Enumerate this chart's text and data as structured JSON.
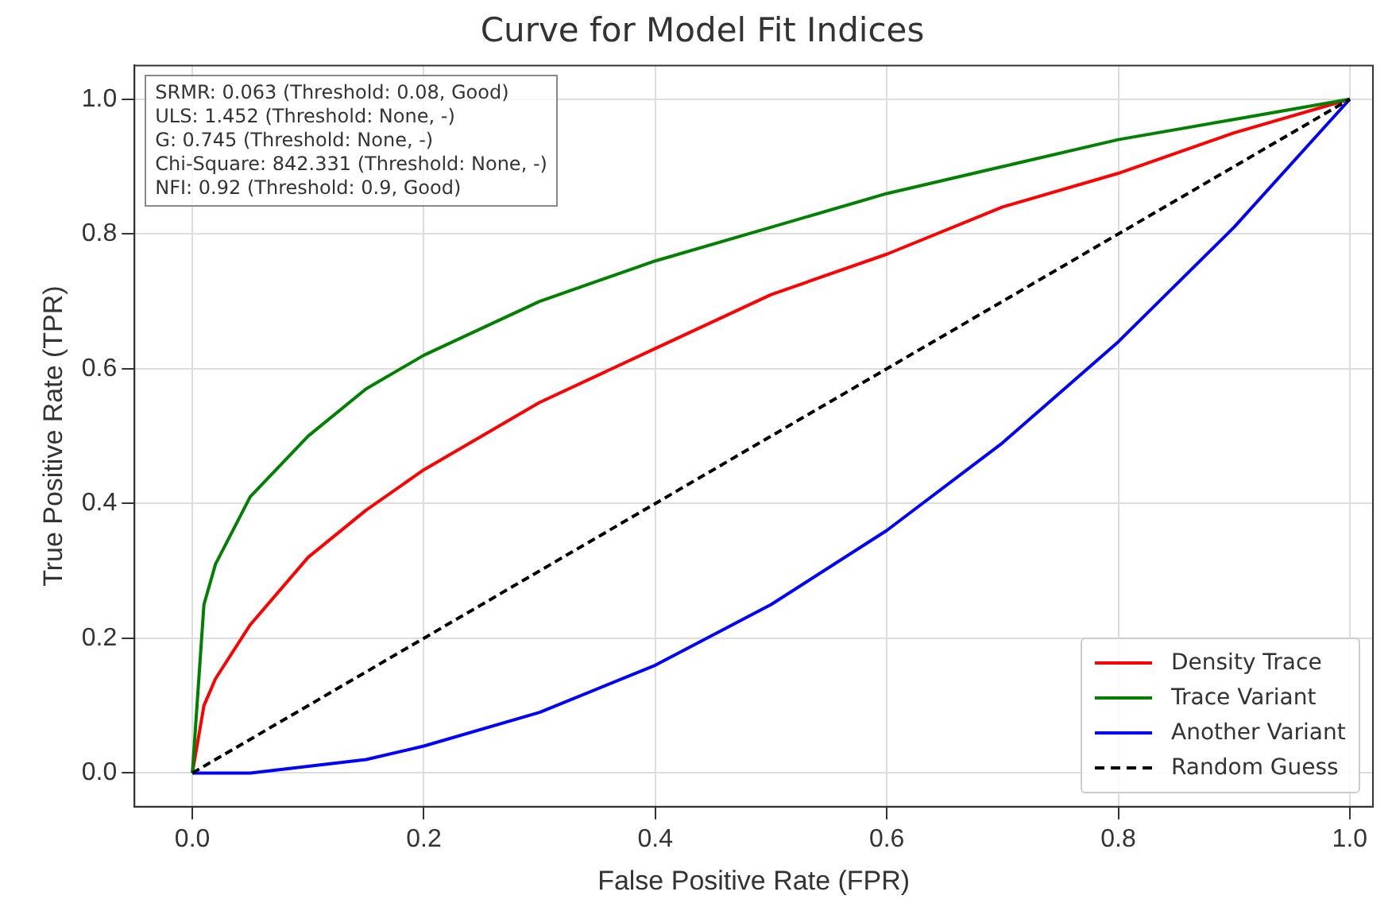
{
  "chart_data": {
    "type": "line",
    "title": "Curve for Model Fit Indices",
    "xlabel": "False Positive Rate (FPR)",
    "ylabel": "True Positive Rate (TPR)",
    "x": [
      0,
      0.01,
      0.02,
      0.05,
      0.1,
      0.15,
      0.2,
      0.3,
      0.4,
      0.5,
      0.6,
      0.7,
      0.8,
      0.9,
      1
    ],
    "series": [
      {
        "name": "Density Trace",
        "color": "#ff0000",
        "values": [
          0,
          0.1,
          0.14,
          0.22,
          0.32,
          0.39,
          0.45,
          0.55,
          0.63,
          0.71,
          0.77,
          0.84,
          0.89,
          0.95,
          1
        ]
      },
      {
        "name": "Trace Variant",
        "color": "#008000",
        "values": [
          0,
          0.25,
          0.31,
          0.41,
          0.5,
          0.57,
          0.62,
          0.7,
          0.76,
          0.81,
          0.86,
          0.9,
          0.94,
          0.97,
          1
        ]
      },
      {
        "name": "Another Variant",
        "color": "#0000ff",
        "values": [
          0,
          0,
          0,
          0,
          0.01,
          0.02,
          0.04,
          0.09,
          0.16,
          0.25,
          0.36,
          0.49,
          0.64,
          0.81,
          1
        ]
      },
      {
        "name": "Random Guess",
        "color": "#000000",
        "line_style": "dashed",
        "x": [
          0,
          1
        ],
        "values": [
          0,
          1
        ]
      }
    ],
    "xlim": [
      -0.05,
      1.02
    ],
    "ylim": [
      -0.05,
      1.05
    ],
    "xticks": [
      {
        "value": 0,
        "label": "0.0"
      },
      {
        "value": 0.2,
        "label": "0.2"
      },
      {
        "value": 0.4,
        "label": "0.4"
      },
      {
        "value": 0.6,
        "label": "0.6"
      },
      {
        "value": 0.8,
        "label": "0.8"
      },
      {
        "value": 1,
        "label": "1.0"
      }
    ],
    "yticks": [
      {
        "value": 0,
        "label": "0.0"
      },
      {
        "value": 0.2,
        "label": "0.2"
      },
      {
        "value": 0.4,
        "label": "0.4"
      },
      {
        "value": 0.6,
        "label": "0.6"
      },
      {
        "value": 0.8,
        "label": "0.8"
      },
      {
        "value": 1,
        "label": "1.0"
      }
    ],
    "grid": true,
    "legend": "bottom right",
    "marker": "none",
    "line_style": "solid",
    "annotations": [
      "SRMR: 0.063 (Threshold: 0.08, Good)",
      "ULS: 1.452 (Threshold: None, -)",
      "G: 0.745 (Threshold: None, -)",
      "Chi-Square: 842.331 (Threshold: None, -)",
      "NFI: 0.92 (Threshold: 0.9, Good)"
    ]
  }
}
